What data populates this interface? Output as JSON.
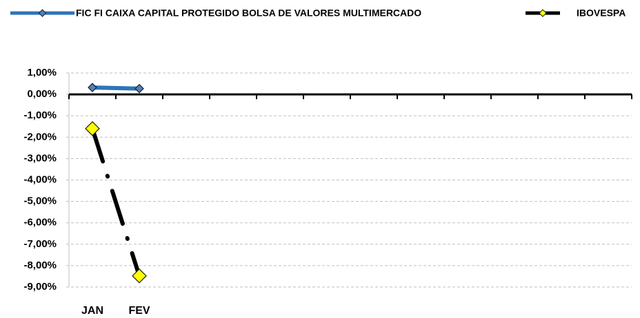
{
  "chart_data": {
    "type": "line",
    "categories": [
      "JAN",
      "FEV",
      null,
      null,
      null,
      null,
      null,
      null,
      null,
      null,
      null,
      null
    ],
    "series": [
      {
        "name": "FIC FI CAIXA CAPITAL PROTEGIDO BOLSA DE VALORES MULTIMERCADO",
        "color": "#2e75b6",
        "marker_color": "#4f81bd",
        "line_style": "solid",
        "values": [
          0.32,
          0.27,
          null,
          null,
          null,
          null,
          null,
          null,
          null,
          null,
          null,
          null
        ]
      },
      {
        "name": "IBOVESPA",
        "color": "#000000",
        "marker_color": "#ffff00",
        "line_style": "dash-dot",
        "values": [
          -1.6,
          -8.48,
          null,
          null,
          null,
          null,
          null,
          null,
          null,
          null,
          null,
          null
        ]
      }
    ],
    "ylim": [
      -9,
      1
    ],
    "yticks": [
      {
        "value": 1,
        "label": "1,00%"
      },
      {
        "value": 0,
        "label": "0,00%"
      },
      {
        "value": -1,
        "label": "-1,00%"
      },
      {
        "value": -2,
        "label": "-2,00%"
      },
      {
        "value": -3,
        "label": "-3,00%"
      },
      {
        "value": -4,
        "label": "-4,00%"
      },
      {
        "value": -5,
        "label": "-5,00%"
      },
      {
        "value": -6,
        "label": "-6,00%"
      },
      {
        "value": -7,
        "label": "-7,00%"
      },
      {
        "value": -8,
        "label": "-8,00%"
      },
      {
        "value": -9,
        "label": "-9,00%"
      }
    ],
    "grid": true,
    "legend": "top"
  }
}
